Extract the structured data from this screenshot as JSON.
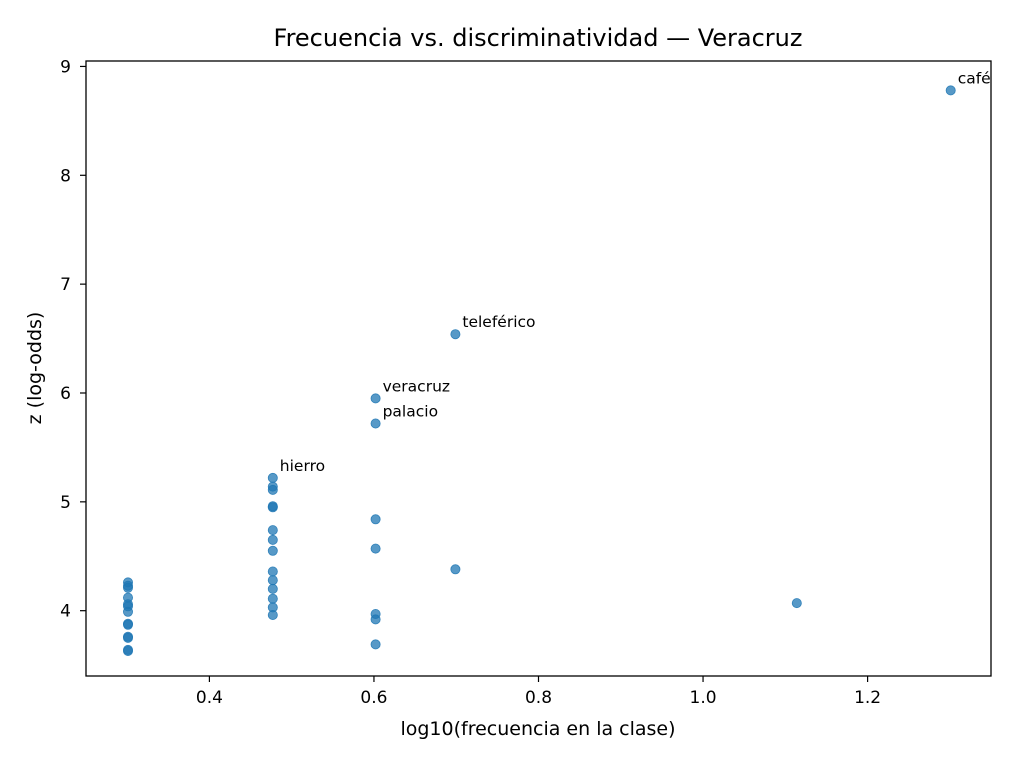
{
  "chart_data": {
    "type": "scatter",
    "title": "Frecuencia vs. discriminatividad — Veracruz",
    "xlabel": "log10(frecuencia en la clase)",
    "ylabel": "z (log-odds)",
    "xlim": [
      0.25,
      1.35
    ],
    "ylim": [
      3.4,
      9.05
    ],
    "xticks": [
      0.4,
      0.6,
      0.8,
      1.0,
      1.2
    ],
    "xtick_labels": [
      "0.4",
      "0.6",
      "0.8",
      "1.0",
      "1.2"
    ],
    "yticks": [
      4,
      5,
      6,
      7,
      8,
      9
    ],
    "ytick_labels": [
      "4",
      "5",
      "6",
      "7",
      "8",
      "9"
    ],
    "grid": false,
    "point_color": "#1f77b4",
    "points": [
      {
        "x": 0.301,
        "y": 4.26
      },
      {
        "x": 0.301,
        "y": 4.23
      },
      {
        "x": 0.301,
        "y": 4.21
      },
      {
        "x": 0.301,
        "y": 4.12
      },
      {
        "x": 0.301,
        "y": 4.06
      },
      {
        "x": 0.301,
        "y": 4.04
      },
      {
        "x": 0.301,
        "y": 3.99
      },
      {
        "x": 0.301,
        "y": 3.88
      },
      {
        "x": 0.301,
        "y": 3.87
      },
      {
        "x": 0.301,
        "y": 3.76
      },
      {
        "x": 0.301,
        "y": 3.75
      },
      {
        "x": 0.301,
        "y": 3.64
      },
      {
        "x": 0.301,
        "y": 3.63
      },
      {
        "x": 0.477,
        "y": 5.22
      },
      {
        "x": 0.477,
        "y": 5.14
      },
      {
        "x": 0.477,
        "y": 5.11
      },
      {
        "x": 0.477,
        "y": 4.96
      },
      {
        "x": 0.477,
        "y": 4.95
      },
      {
        "x": 0.477,
        "y": 4.74
      },
      {
        "x": 0.477,
        "y": 4.65
      },
      {
        "x": 0.477,
        "y": 4.55
      },
      {
        "x": 0.477,
        "y": 4.36
      },
      {
        "x": 0.477,
        "y": 4.28
      },
      {
        "x": 0.477,
        "y": 4.2
      },
      {
        "x": 0.477,
        "y": 4.11
      },
      {
        "x": 0.477,
        "y": 4.03
      },
      {
        "x": 0.477,
        "y": 3.96
      },
      {
        "x": 0.602,
        "y": 5.95
      },
      {
        "x": 0.602,
        "y": 5.72
      },
      {
        "x": 0.602,
        "y": 4.84
      },
      {
        "x": 0.602,
        "y": 4.57
      },
      {
        "x": 0.602,
        "y": 3.97
      },
      {
        "x": 0.602,
        "y": 3.92
      },
      {
        "x": 0.602,
        "y": 3.69
      },
      {
        "x": 0.699,
        "y": 6.54
      },
      {
        "x": 0.699,
        "y": 4.38
      },
      {
        "x": 1.114,
        "y": 4.07
      },
      {
        "x": 1.301,
        "y": 8.78
      }
    ],
    "annotations": [
      {
        "text": "café",
        "x": 1.301,
        "y": 8.78
      },
      {
        "text": "teleférico",
        "x": 0.699,
        "y": 6.54
      },
      {
        "text": "veracruz",
        "x": 0.602,
        "y": 5.95
      },
      {
        "text": "palacio",
        "x": 0.602,
        "y": 5.72
      },
      {
        "text": "hierro",
        "x": 0.477,
        "y": 5.22
      }
    ]
  }
}
